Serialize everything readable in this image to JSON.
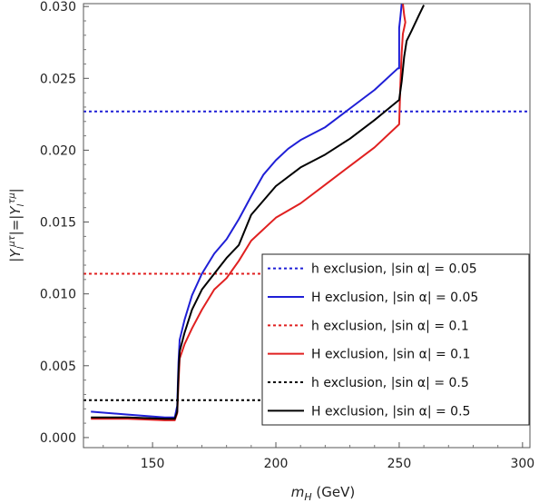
{
  "chart_data": {
    "type": "line",
    "title": "",
    "xlabel": "m_H (GeV)",
    "xlabel_parts": {
      "main": "m",
      "sub": "H",
      "rest": " (GeV)"
    },
    "ylabel": "|Y_l^{μτ}|=|Y_l^{τμ}|",
    "ylabel_parts": {
      "bar1": "|",
      "main1": "Y",
      "sub1": "l",
      "sup1": "μτ",
      "mid": "|=|",
      "main2": "Y",
      "sub2": "l",
      "sup2": "τμ",
      "bar2": "|"
    },
    "xlim": [
      122,
      303
    ],
    "ylim": [
      -0.0007,
      0.0302
    ],
    "xticks": [
      150,
      200,
      250,
      300
    ],
    "xtick_labels": [
      "150",
      "200",
      "250",
      "300"
    ],
    "yticks": [
      0.0,
      0.005,
      0.01,
      0.015,
      0.02,
      0.025,
      0.03
    ],
    "ytick_labels": [
      "0.000",
      "0.005",
      "0.010",
      "0.015",
      "0.020",
      "0.025",
      "0.030"
    ],
    "grid": false,
    "legend_position": "lower-right",
    "series": [
      {
        "name": "h exclusion, |sin α| = 0.05",
        "color": "#1f1fd6",
        "style": "dotted",
        "x": [
          122,
          303
        ],
        "y": [
          0.0227,
          0.0227
        ]
      },
      {
        "name": "H exclusion, |sin α| = 0.05",
        "color": "#1f1fd6",
        "style": "solid",
        "x": [
          125,
          140,
          155,
          159,
          160,
          160.5,
          161,
          163,
          166,
          170,
          175,
          180,
          185,
          190,
          195,
          200,
          205,
          210,
          220,
          230,
          240,
          249.5,
          250,
          250,
          250.5,
          251
        ],
        "y": [
          0.0018,
          0.0016,
          0.0014,
          0.0014,
          0.0022,
          0.0052,
          0.0068,
          0.0082,
          0.0099,
          0.0114,
          0.0128,
          0.0138,
          0.0152,
          0.0168,
          0.0183,
          0.0193,
          0.0201,
          0.0207,
          0.0216,
          0.0229,
          0.0242,
          0.0257,
          0.0257,
          0.0285,
          0.0293,
          0.0302
        ]
      },
      {
        "name": "h exclusion, |sin α| = 0.1",
        "color": "#e02020",
        "style": "dotted",
        "x": [
          122,
          303
        ],
        "y": [
          0.0114,
          0.0114
        ]
      },
      {
        "name": "H exclusion, |sin α| = 0.1",
        "color": "#e02020",
        "style": "solid",
        "x": [
          125,
          140,
          155,
          159,
          160,
          160.5,
          161,
          163,
          166,
          170,
          175,
          180,
          185,
          190,
          200,
          210,
          220,
          230,
          240,
          250,
          250.5,
          251,
          251.5,
          252,
          252.5,
          252,
          251.5
        ],
        "y": [
          0.0013,
          0.0013,
          0.0012,
          0.0012,
          0.0017,
          0.0038,
          0.0055,
          0.0065,
          0.0076,
          0.0089,
          0.0103,
          0.0111,
          0.0123,
          0.0137,
          0.0153,
          0.0163,
          0.0176,
          0.0189,
          0.0202,
          0.0218,
          0.0247,
          0.0268,
          0.0281,
          0.0285,
          0.0289,
          0.0294,
          0.0302
        ]
      },
      {
        "name": "h exclusion, |sin α| = 0.5",
        "color": "#000000",
        "style": "dotted",
        "x": [
          122,
          303
        ],
        "y": [
          0.0026,
          0.0026
        ]
      },
      {
        "name": "H exclusion, |sin α| = 0.5",
        "color": "#000000",
        "style": "solid",
        "x": [
          125,
          140,
          155,
          159,
          160,
          160.5,
          161,
          163,
          166,
          170,
          175,
          180,
          185,
          190,
          200,
          210,
          220,
          230,
          240,
          250,
          251,
          252,
          253,
          255,
          258,
          260
        ],
        "y": [
          0.0014,
          0.0014,
          0.0013,
          0.0013,
          0.0018,
          0.0045,
          0.006,
          0.0073,
          0.0089,
          0.0103,
          0.0114,
          0.0125,
          0.0134,
          0.0155,
          0.0175,
          0.0188,
          0.0197,
          0.0208,
          0.0221,
          0.0235,
          0.0248,
          0.0265,
          0.0276,
          0.0283,
          0.0294,
          0.0301
        ]
      }
    ]
  }
}
